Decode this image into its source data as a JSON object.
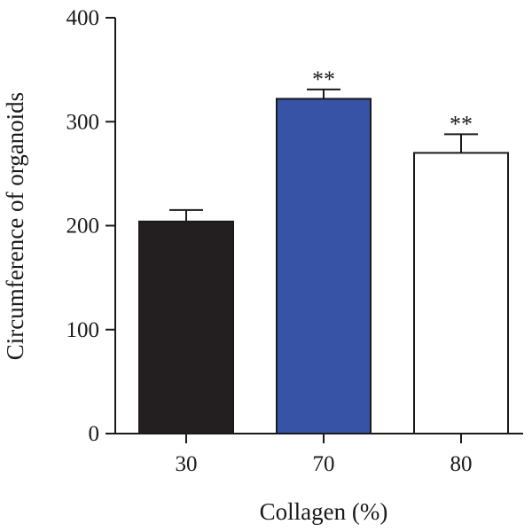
{
  "chart_data": {
    "type": "bar",
    "categories": [
      "30",
      "70",
      "80"
    ],
    "values": [
      204,
      322,
      270
    ],
    "errors": [
      11,
      9,
      18
    ],
    "annotations": [
      "",
      "**",
      "**"
    ],
    "bar_colors": [
      "#231f20",
      "#3653a5",
      "#ffffff"
    ],
    "xlabel": "Collagen (%)",
    "ylabel": "Circumference of organoids",
    "ylim": [
      0,
      400
    ],
    "yticks": [
      "0",
      "100",
      "200",
      "300",
      "400"
    ],
    "grid": false
  }
}
